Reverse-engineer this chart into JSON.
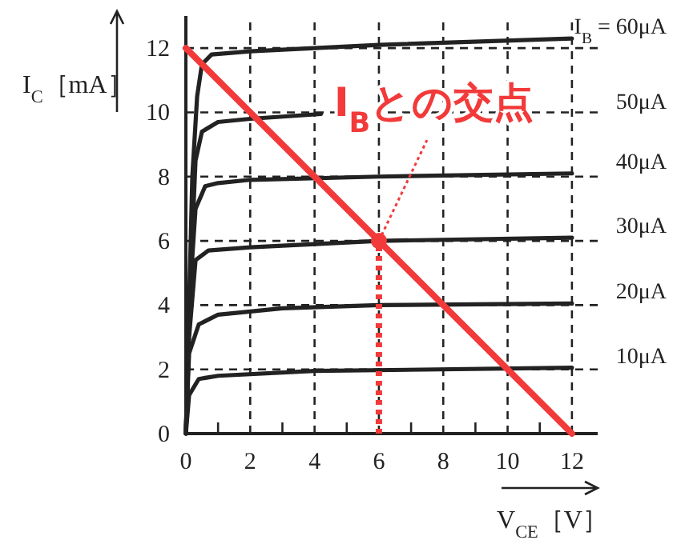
{
  "chart_data": {
    "type": "line",
    "xlabel": "V$_{CE}$［V］",
    "ylabel": "I$_{C}$［mA］",
    "xlim": [
      0,
      12.8
    ],
    "ylim": [
      0,
      13
    ],
    "xticks": [
      0,
      {
        "value": 1,
        "label": null
      },
      2,
      {
        "value": 3,
        "label": null
      },
      4,
      {
        "value": 5,
        "label": null
      },
      6,
      {
        "value": 7,
        "label": null
      },
      8,
      {
        "value": 9,
        "label": null
      },
      10,
      {
        "value": 11,
        "label": null
      },
      12
    ],
    "yticks": [
      0,
      2,
      4,
      6,
      8,
      10,
      12
    ],
    "grid": true,
    "series": [
      {
        "name": "I$_{B}$ = 60μA",
        "color": "#222222",
        "x": [
          0,
          0.1,
          0.2,
          0.35,
          0.5,
          0.8,
          2,
          6,
          12
        ],
        "values": [
          0,
          4,
          8,
          10.5,
          11.5,
          11.8,
          11.9,
          12.1,
          12.3
        ]
      },
      {
        "name": "50μA",
        "color": "#222222",
        "x": [
          0,
          0.15,
          0.3,
          0.5,
          1,
          2,
          4.2
        ],
        "values": [
          0,
          5,
          8.5,
          9.4,
          9.7,
          9.8,
          9.95
        ]
      },
      {
        "name": "40μA",
        "color": "#222222",
        "x": [
          0,
          0.1,
          0.3,
          0.6,
          1,
          2,
          6,
          12
        ],
        "values": [
          0,
          4,
          7,
          7.7,
          7.8,
          7.9,
          8,
          8.1
        ]
      },
      {
        "name": "30μA",
        "color": "#222222",
        "x": [
          0,
          0.1,
          0.3,
          0.7,
          2,
          6,
          12
        ],
        "values": [
          0,
          3,
          5.4,
          5.7,
          5.8,
          6,
          6.1
        ]
      },
      {
        "name": "20μA",
        "color": "#222222",
        "x": [
          0,
          0.1,
          0.4,
          1,
          3,
          6,
          12
        ],
        "values": [
          0,
          2.5,
          3.4,
          3.7,
          3.9,
          4,
          4.05
        ]
      },
      {
        "name": "10μA",
        "color": "#222222",
        "x": [
          0,
          0.1,
          0.4,
          1,
          4,
          12
        ],
        "values": [
          0,
          1.2,
          1.7,
          1.8,
          1.95,
          2.05
        ]
      },
      {
        "color": "#f23a3a",
        "x": [
          0,
          12
        ],
        "values": [
          12,
          0
        ]
      },
      {
        "color": "#f23a3a",
        "x": [
          6,
          6
        ],
        "values": [
          0,
          6
        ],
        "line_style": "dotted"
      },
      {
        "type": "scatter",
        "color": "#f23a3a",
        "x": [
          6
        ],
        "values": [
          6
        ],
        "marker": "circle"
      }
    ],
    "annotations": [
      {
        "text": "I$_{B}$との交点",
        "x": 6,
        "y": 6
      }
    ]
  }
}
